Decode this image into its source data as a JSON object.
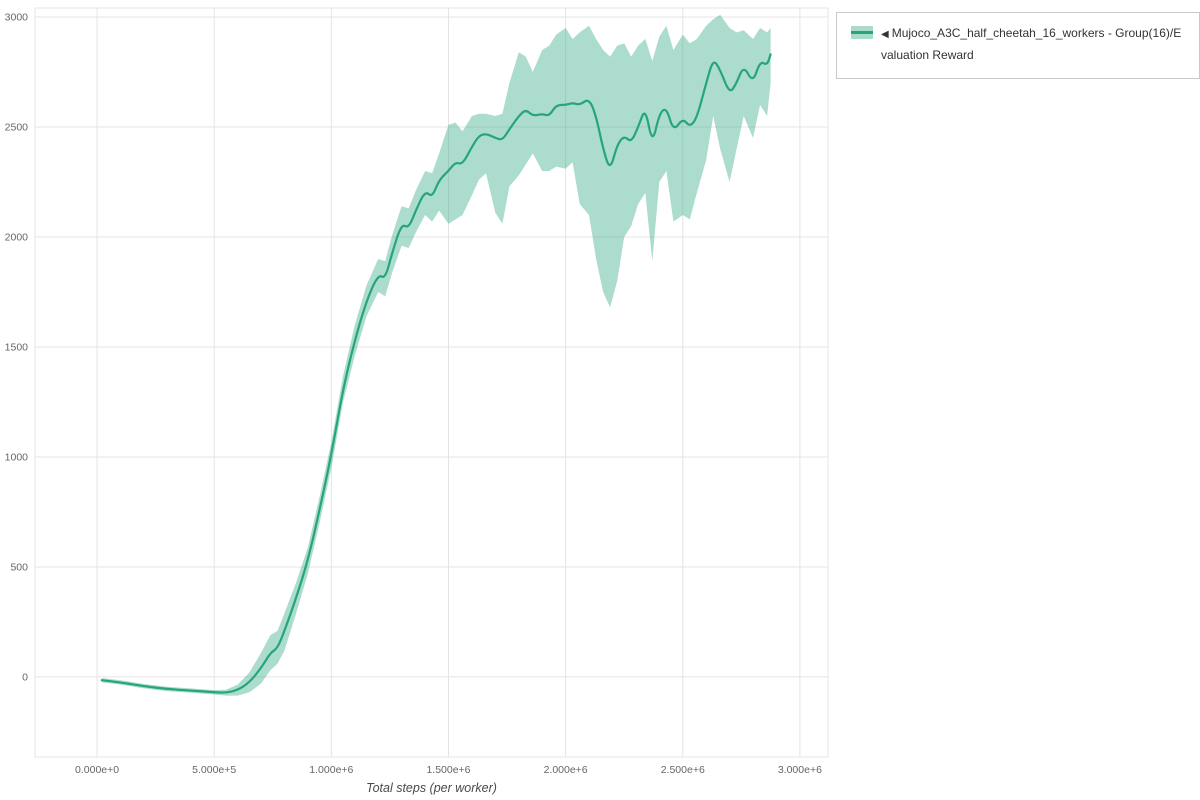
{
  "page": {
    "background": "#ffffff"
  },
  "legend": {
    "collapse_icon": "◀",
    "label": "Mujoco_A3C_half_cheetah_16_workers - Group(16)/Evaluation Reward",
    "series_color": "#26a47c",
    "band_color": "#a8dcc8",
    "border_color": "#c9c9c9"
  },
  "chart_data": {
    "type": "line",
    "title": "",
    "xlabel": "Total steps (per worker)",
    "ylabel": "",
    "grid": true,
    "legend_position": "top-right",
    "grid_color": "#e4e4e4",
    "tick_color": "#666666",
    "xlim": [
      -265000,
      3120000
    ],
    "ylim": [
      -364,
      3041
    ],
    "x_ticks": {
      "values": [
        0,
        500000,
        1000000,
        1500000,
        2000000,
        2500000,
        3000000
      ],
      "labels": [
        "0.000e+0",
        "5.000e+5",
        "1.000e+6",
        "1.500e+6",
        "2.000e+6",
        "2.500e+6",
        "3.000e+6"
      ]
    },
    "y_ticks": {
      "values": [
        0,
        500,
        1000,
        1500,
        2000,
        2500,
        3000
      ],
      "labels": [
        "0",
        "500",
        "1000",
        "1500",
        "2000",
        "2500",
        "3000"
      ]
    },
    "series": [
      {
        "name": "Mujoco_A3C_half_cheetah_16_workers - Group(16)/Evaluation Reward",
        "color": "#26a47c",
        "band_opacity": 0.38,
        "x": [
          20000,
          100000,
          200000,
          300000,
          400000,
          500000,
          550000,
          600000,
          650000,
          700000,
          740000,
          770000,
          800000,
          850000,
          900000,
          950000,
          1000000,
          1050000,
          1100000,
          1150000,
          1200000,
          1230000,
          1260000,
          1300000,
          1330000,
          1360000,
          1400000,
          1430000,
          1460000,
          1500000,
          1530000,
          1560000,
          1600000,
          1630000,
          1660000,
          1700000,
          1730000,
          1760000,
          1800000,
          1830000,
          1860000,
          1900000,
          1930000,
          1960000,
          2000000,
          2030000,
          2060000,
          2100000,
          2130000,
          2160000,
          2190000,
          2220000,
          2250000,
          2280000,
          2310000,
          2340000,
          2370000,
          2400000,
          2430000,
          2460000,
          2500000,
          2530000,
          2560000,
          2600000,
          2630000,
          2660000,
          2700000,
          2730000,
          2760000,
          2800000,
          2830000,
          2860000,
          2875000
        ],
        "mean": [
          -15,
          -25,
          -42,
          -55,
          -62,
          -70,
          -72,
          -60,
          -25,
          40,
          110,
          130,
          210,
          360,
          530,
          760,
          1010,
          1310,
          1530,
          1710,
          1830,
          1810,
          1930,
          2060,
          2040,
          2120,
          2210,
          2180,
          2260,
          2300,
          2340,
          2330,
          2410,
          2460,
          2470,
          2450,
          2440,
          2490,
          2550,
          2580,
          2550,
          2560,
          2550,
          2600,
          2600,
          2610,
          2600,
          2630,
          2550,
          2400,
          2300,
          2420,
          2460,
          2430,
          2500,
          2590,
          2420,
          2560,
          2590,
          2480,
          2540,
          2500,
          2540,
          2700,
          2810,
          2760,
          2650,
          2700,
          2780,
          2700,
          2800,
          2780,
          2830
        ],
        "lower": [
          -25,
          -35,
          -52,
          -65,
          -72,
          -80,
          -85,
          -85,
          -70,
          -30,
          30,
          60,
          120,
          290,
          470,
          700,
          950,
          1250,
          1460,
          1640,
          1750,
          1730,
          1840,
          1960,
          1950,
          2020,
          2100,
          2070,
          2120,
          2060,
          2080,
          2100,
          2190,
          2260,
          2290,
          2110,
          2060,
          2230,
          2280,
          2330,
          2380,
          2300,
          2300,
          2320,
          2310,
          2340,
          2150,
          2100,
          1900,
          1750,
          1680,
          1800,
          2000,
          2050,
          2150,
          2200,
          1890,
          2250,
          2300,
          2070,
          2100,
          2080,
          2200,
          2350,
          2550,
          2400,
          2250,
          2400,
          2550,
          2450,
          2600,
          2550,
          2700
        ],
        "upper": [
          -5,
          -15,
          -32,
          -45,
          -52,
          -60,
          -58,
          -35,
          20,
          110,
          190,
          210,
          290,
          430,
          590,
          820,
          1070,
          1370,
          1600,
          1780,
          1900,
          1890,
          2010,
          2140,
          2130,
          2210,
          2300,
          2290,
          2380,
          2510,
          2520,
          2480,
          2550,
          2560,
          2560,
          2550,
          2560,
          2700,
          2840,
          2820,
          2750,
          2850,
          2870,
          2920,
          2950,
          2900,
          2930,
          2960,
          2900,
          2850,
          2820,
          2870,
          2880,
          2820,
          2870,
          2900,
          2800,
          2910,
          2960,
          2850,
          2920,
          2880,
          2900,
          2960,
          2990,
          3010,
          2950,
          2930,
          2940,
          2900,
          2950,
          2930,
          2950
        ]
      }
    ]
  }
}
